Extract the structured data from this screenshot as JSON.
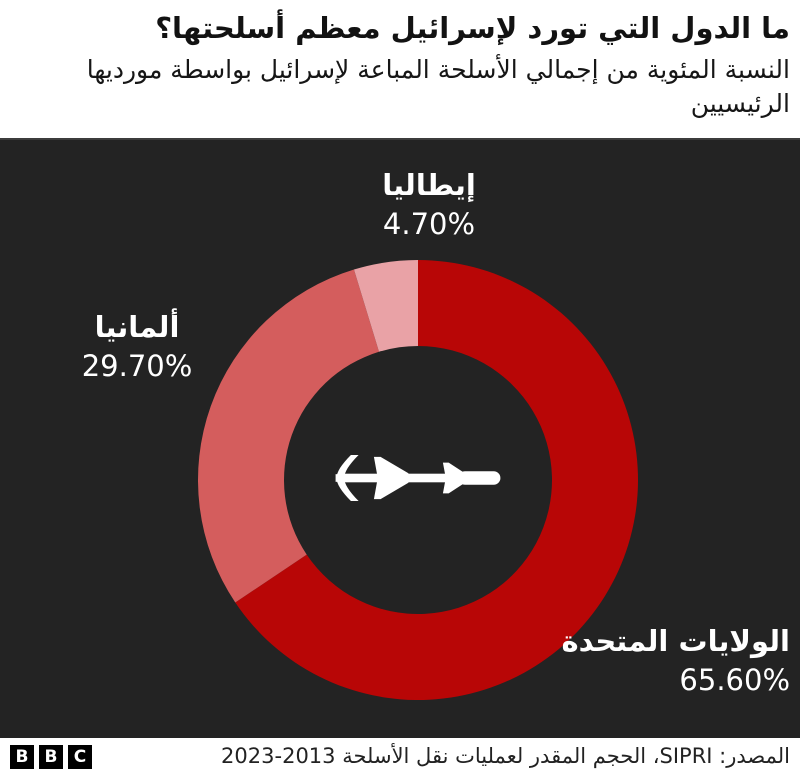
{
  "header": {
    "title": "ما الدول التي تورد لإسرائيل معظم أسلحتها؟",
    "subtitle": "النسبة المئوية من إجمالي الأسلحة المباعة لإسرائيل بواسطة مورديها الرئيسيين"
  },
  "chart_data": {
    "type": "pie",
    "subtype": "donut",
    "title": "ما الدول التي تورد لإسرائيل معظم أسلحتها؟",
    "unit": "%",
    "direction": "clockwise",
    "start_angle_deg": 0,
    "background_color": "#232323",
    "inner_radius_ratio": 0.61,
    "center_icon": "missile-icon",
    "series": [
      {
        "name": "الولايات المتحدة",
        "value": 65.6,
        "label": "65.60%",
        "color": "#b80606"
      },
      {
        "name": "ألمانيا",
        "value": 29.7,
        "label": "29.70%",
        "color": "#d45d5d"
      },
      {
        "name": "إيطاليا",
        "value": 4.7,
        "label": "4.70%",
        "color": "#e9a2a6"
      }
    ]
  },
  "footer": {
    "logo_letters": [
      "B",
      "B",
      "C"
    ],
    "source": "المصدر: SIPRI، الحجم المقدر لعمليات نقل الأسلحة 2013-2023"
  }
}
